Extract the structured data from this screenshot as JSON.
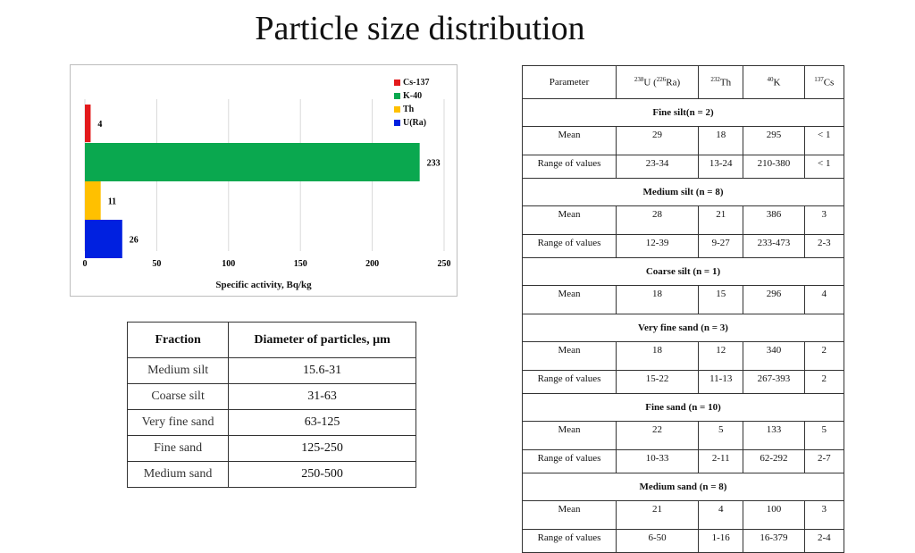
{
  "title": "Particle size distribution",
  "chart_data": {
    "type": "bar",
    "orientation": "horizontal",
    "categories": [
      "Cs-137",
      "K-40",
      "Th",
      "U(Ra)"
    ],
    "values": [
      4,
      233,
      11,
      26
    ],
    "colors": [
      "#e31a1c",
      "#0aa84f",
      "#ffc000",
      "#0020e0"
    ],
    "xlabel": "Specific activity, Bq/kg",
    "xlim": [
      0,
      250
    ],
    "xticks": [
      0,
      50,
      100,
      150,
      200,
      250
    ],
    "grid": "vertical",
    "legend_placement": "top-right",
    "legend": [
      "Cs-137",
      "K-40",
      "Th",
      "U(Ra)"
    ]
  },
  "fraction_table": {
    "headers": [
      "Fraction",
      "Diameter of particles, µm"
    ],
    "rows": [
      [
        "Medium silt",
        "15.6-31"
      ],
      [
        "Coarse silt",
        "31-63"
      ],
      [
        "Very fine sand",
        "63-125"
      ],
      [
        "Fine sand",
        "125-250"
      ],
      [
        "Medium sand",
        "250-500"
      ]
    ]
  },
  "radio_table": {
    "headers": {
      "parameter": "Parameter",
      "u_mass": "238",
      "u_sym": "U (",
      "ra_mass": "226",
      "ra_sym": "Ra)",
      "th_mass": "232",
      "th_sym": "Th",
      "k_mass": "40",
      "k_sym": "K",
      "cs_mass": "137",
      "cs_sym": "Cs"
    },
    "groups": [
      {
        "name": "Fine silt(n = 2)",
        "rows": [
          {
            "label": "Mean",
            "values": [
              "29",
              "18",
              "295",
              "< 1"
            ]
          },
          {
            "label": "Range of values",
            "values": [
              "23-34",
              "13-24",
              "210-380",
              "< 1"
            ]
          }
        ]
      },
      {
        "name": "Medium silt (n = 8)",
        "rows": [
          {
            "label": "Mean",
            "values": [
              "28",
              "21",
              "386",
              "3"
            ]
          },
          {
            "label": "Range of values",
            "values": [
              "12-39",
              "9-27",
              "233-473",
              "2-3"
            ]
          }
        ]
      },
      {
        "name": "Coarse silt (n = 1)",
        "rows": [
          {
            "label": "Mean",
            "values": [
              "18",
              "15",
              "296",
              "4"
            ]
          }
        ]
      },
      {
        "name": "Very fine sand (n = 3)",
        "rows": [
          {
            "label": "Mean",
            "values": [
              "18",
              "12",
              "340",
              "2"
            ]
          },
          {
            "label": "Range of values",
            "values": [
              "15-22",
              "11-13",
              "267-393",
              "2"
            ]
          }
        ]
      },
      {
        "name": "Fine sand (n = 10)",
        "rows": [
          {
            "label": "Mean",
            "values": [
              "22",
              "5",
              "133",
              "5"
            ]
          },
          {
            "label": "Range of values",
            "values": [
              "10-33",
              "2-11",
              "62-292",
              "2-7"
            ]
          }
        ]
      },
      {
        "name": "Medium sand (n = 8)",
        "rows": [
          {
            "label": "Mean",
            "values": [
              "21",
              "4",
              "100",
              "3"
            ]
          },
          {
            "label": "Range of values",
            "values": [
              "6-50",
              "1-16",
              "16-379",
              "2-4"
            ]
          }
        ]
      }
    ]
  }
}
